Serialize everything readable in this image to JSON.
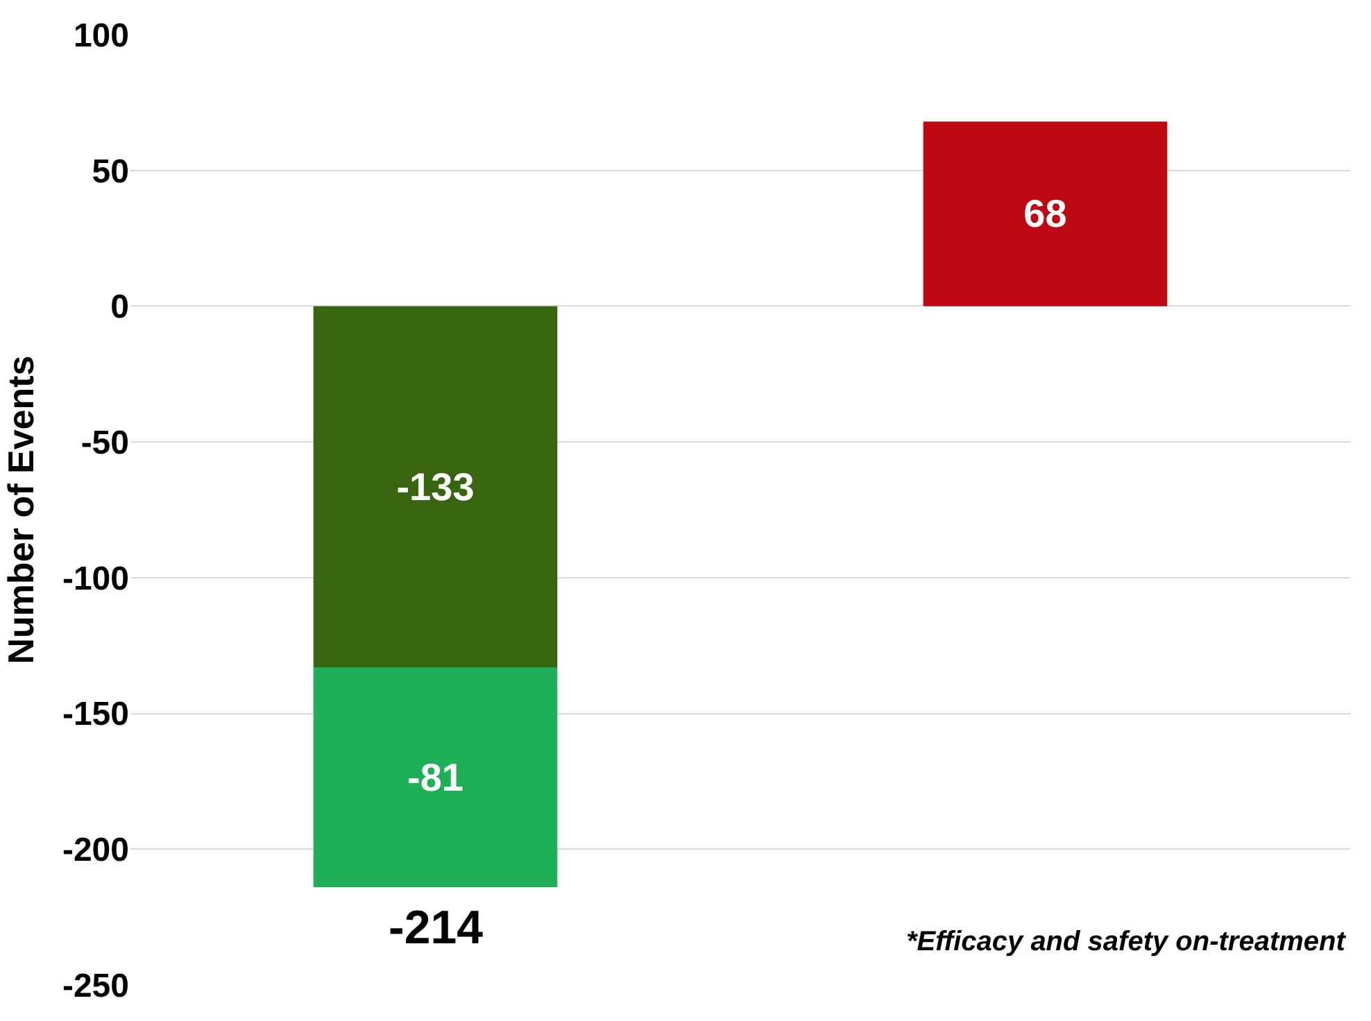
{
  "chart_data": {
    "type": "bar",
    "ylabel": "Number of Events",
    "categories": [
      null,
      null
    ],
    "series": [
      {
        "color": "#376510",
        "values": [
          -133,
          null
        ]
      },
      {
        "color": "#1db056",
        "values": [
          -81,
          null
        ]
      },
      {
        "color": "#be0712",
        "values": [
          null,
          68
        ]
      }
    ],
    "stacked": true,
    "data_labels": true,
    "totals": [
      "-214",
      null
    ],
    "ylim": [
      -250,
      100
    ],
    "yticks": [
      -250,
      -200,
      -150,
      -100,
      -50,
      0,
      50,
      100
    ],
    "grid": "y",
    "annotations": [
      "*Efficacy and safety on-treatment"
    ]
  }
}
